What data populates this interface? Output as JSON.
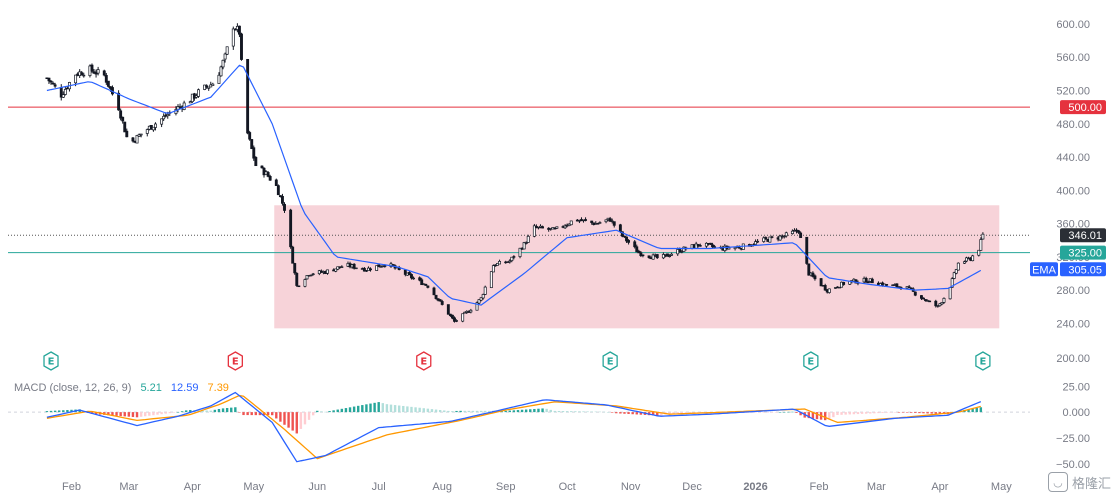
{
  "chart_data": {
    "type": "candlestick",
    "price_axis": {
      "ticks": [
        240,
        280,
        320,
        360,
        400,
        440,
        480,
        520,
        560,
        600
      ],
      "ylim": [
        226,
        612
      ]
    },
    "macd_axis": {
      "ticks": [
        25,
        0,
        -25,
        -50
      ],
      "tick_labels": [
        "25.00",
        "0.000",
        "−25.00",
        "−50.00"
      ],
      "ylim": [
        -56,
        33
      ]
    },
    "shared_tick": {
      "value": 200,
      "label": "200.00"
    },
    "x_axis": {
      "labels": [
        "Feb",
        "Mar",
        "Apr",
        "May",
        "Jun",
        "Jul",
        "Aug",
        "Sep",
        "Oct",
        "Nov",
        "Dec",
        "2026",
        "Feb",
        "Mar",
        "Apr",
        "May"
      ],
      "bold_label": "2026"
    },
    "anchors": [
      [
        "2025-01-20",
        535
      ],
      [
        "2025-01-27",
        515
      ],
      [
        "2025-02-03",
        540
      ],
      [
        "2025-02-10",
        545
      ],
      [
        "2025-02-17",
        538
      ],
      [
        "2025-02-24",
        500
      ],
      [
        "2025-03-01",
        455
      ],
      [
        "2025-03-08",
        470
      ],
      [
        "2025-03-15",
        482
      ],
      [
        "2025-03-22",
        495
      ],
      [
        "2025-03-29",
        505
      ],
      [
        "2025-04-05",
        520
      ],
      [
        "2025-04-12",
        530
      ],
      [
        "2025-04-17",
        560
      ],
      [
        "2025-04-21",
        598
      ],
      [
        "2025-04-24",
        590
      ],
      [
        "2025-04-27",
        478
      ],
      [
        "2025-05-02",
        430
      ],
      [
        "2025-05-07",
        420
      ],
      [
        "2025-05-12",
        405
      ],
      [
        "2025-05-16",
        378
      ],
      [
        "2025-05-19",
        330
      ],
      [
        "2025-05-22",
        285
      ],
      [
        "2025-05-28",
        300
      ],
      [
        "2025-06-05",
        302
      ],
      [
        "2025-06-15",
        310
      ],
      [
        "2025-06-25",
        305
      ],
      [
        "2025-07-05",
        312
      ],
      [
        "2025-07-15",
        298
      ],
      [
        "2025-07-25",
        285
      ],
      [
        "2025-08-01",
        262
      ],
      [
        "2025-08-07",
        242
      ],
      [
        "2025-08-14",
        255
      ],
      [
        "2025-08-20",
        270
      ],
      [
        "2025-08-26",
        310
      ],
      [
        "2025-09-03",
        315
      ],
      [
        "2025-09-10",
        335
      ],
      [
        "2025-09-15",
        355
      ],
      [
        "2025-09-25",
        352
      ],
      [
        "2025-10-05",
        365
      ],
      [
        "2025-10-15",
        360
      ],
      [
        "2025-10-22",
        365
      ],
      [
        "2025-10-28",
        345
      ],
      [
        "2025-11-05",
        325
      ],
      [
        "2025-11-15",
        318
      ],
      [
        "2025-11-25",
        328
      ],
      [
        "2025-12-05",
        335
      ],
      [
        "2025-12-15",
        330
      ],
      [
        "2025-12-25",
        332
      ],
      [
        "2026-01-05",
        340
      ],
      [
        "2026-01-15",
        345
      ],
      [
        "2026-01-22",
        352
      ],
      [
        "2026-01-27",
        300
      ],
      [
        "2026-02-05",
        280
      ],
      [
        "2026-02-15",
        290
      ],
      [
        "2026-02-25",
        292
      ],
      [
        "2026-03-05",
        286
      ],
      [
        "2026-03-15",
        284
      ],
      [
        "2026-03-25",
        268
      ],
      [
        "2026-03-31",
        260
      ],
      [
        "2026-04-05",
        278
      ],
      [
        "2026-04-10",
        312
      ],
      [
        "2026-04-16",
        318
      ],
      [
        "2026-04-20",
        330
      ],
      [
        "2026-04-22",
        346
      ]
    ],
    "ema_anchors": [
      [
        "2025-01-20",
        520
      ],
      [
        "2025-02-10",
        531
      ],
      [
        "2025-03-01",
        510
      ],
      [
        "2025-03-20",
        492
      ],
      [
        "2025-04-10",
        512
      ],
      [
        "2025-04-25",
        553
      ],
      [
        "2025-05-10",
        480
      ],
      [
        "2025-05-25",
        375
      ],
      [
        "2025-06-10",
        320
      ],
      [
        "2025-07-10",
        308
      ],
      [
        "2025-07-25",
        296
      ],
      [
        "2025-08-05",
        270
      ],
      [
        "2025-08-20",
        262
      ],
      [
        "2025-09-10",
        300
      ],
      [
        "2025-10-01",
        343
      ],
      [
        "2025-10-25",
        352
      ],
      [
        "2025-11-15",
        330
      ],
      [
        "2025-12-10",
        330
      ],
      [
        "2026-01-20",
        337
      ],
      [
        "2026-02-05",
        295
      ],
      [
        "2026-02-25",
        287
      ],
      [
        "2026-03-20",
        280
      ],
      [
        "2026-04-05",
        282
      ],
      [
        "2026-04-22",
        305
      ]
    ],
    "macd_anchors": [
      [
        "2025-01-20",
        -5
      ],
      [
        "2025-02-05",
        2
      ],
      [
        "2025-03-05",
        -13
      ],
      [
        "2025-03-25",
        -4
      ],
      [
        "2025-04-10",
        6
      ],
      [
        "2025-04-22",
        19
      ],
      [
        "2025-05-10",
        -10
      ],
      [
        "2025-05-22",
        -48
      ],
      [
        "2025-06-05",
        -42
      ],
      [
        "2025-07-01",
        -15
      ],
      [
        "2025-08-05",
        -9
      ],
      [
        "2025-08-25",
        0
      ],
      [
        "2025-09-20",
        12
      ],
      [
        "2025-10-20",
        7
      ],
      [
        "2025-11-15",
        -4
      ],
      [
        "2025-12-10",
        -2
      ],
      [
        "2026-01-20",
        3
      ],
      [
        "2026-02-05",
        -14
      ],
      [
        "2026-03-10",
        -6
      ],
      [
        "2026-04-05",
        -3
      ],
      [
        "2026-04-22",
        11
      ]
    ],
    "signal_anchors": [
      [
        "2025-01-20",
        -6
      ],
      [
        "2025-02-10",
        1
      ],
      [
        "2025-03-05",
        -8
      ],
      [
        "2025-03-30",
        -3
      ],
      [
        "2025-04-15",
        8
      ],
      [
        "2025-04-25",
        17
      ],
      [
        "2025-05-15",
        -15
      ],
      [
        "2025-06-01",
        -45
      ],
      [
        "2025-07-05",
        -22
      ],
      [
        "2025-08-10",
        -8
      ],
      [
        "2025-09-01",
        2
      ],
      [
        "2025-09-25",
        10
      ],
      [
        "2025-10-25",
        6
      ],
      [
        "2025-11-20",
        -2
      ],
      [
        "2026-01-25",
        3
      ],
      [
        "2026-02-10",
        -10
      ],
      [
        "2026-03-15",
        -5
      ],
      [
        "2026-04-10",
        0
      ],
      [
        "2026-04-22",
        6
      ]
    ],
    "levels": [
      {
        "name": "resistance",
        "value": 500,
        "label": "500.00",
        "color": "#e5323e",
        "style": "solid"
      },
      {
        "name": "support",
        "value": 325,
        "label": "325.00",
        "color": "#26a69a",
        "style": "solid"
      },
      {
        "name": "current",
        "value": 346.01,
        "label": "346.01",
        "color": "#555555",
        "style": "dotted"
      }
    ],
    "ema_tag": {
      "name": "EMA",
      "value": 305.05,
      "label": "305.05",
      "color": "#2962ff"
    },
    "range_box": {
      "from": "2025-05-11",
      "to": "2026-04-30",
      "low": 234,
      "high": 382,
      "color": "#f7d3d9"
    },
    "earnings": [
      {
        "date": "2025-01-22",
        "kind": "neutral"
      },
      {
        "date": "2025-04-22",
        "kind": "miss"
      },
      {
        "date": "2025-07-23",
        "kind": "miss"
      },
      {
        "date": "2025-10-22",
        "kind": "beat"
      },
      {
        "date": "2026-01-28",
        "kind": "beat"
      },
      {
        "date": "2026-04-22",
        "kind": "beat"
      }
    ],
    "earnings_icon": "E",
    "macd": {
      "label": "MACD (close, 12, 26, 9)",
      "values": [
        {
          "name": "histogram",
          "label": "5.21",
          "color": "#26a69a"
        },
        {
          "name": "macd",
          "label": "12.59",
          "color": "#2962ff"
        },
        {
          "name": "signal",
          "label": "7.39",
          "color": "#ff9800"
        }
      ]
    },
    "colors": {
      "candle": "#131722",
      "ema": "#2962ff",
      "macd_line": "#2962ff",
      "signal_line": "#ff9800",
      "hist_pos": "#26a69a",
      "hist_neg": "#ef5350",
      "earn_beat": "#26a69a",
      "earn_miss": "#e5323e",
      "earn_neutral": "#26a69a"
    }
  },
  "watermark": {
    "icon": "chat-bubble-icon",
    "text": "格隆汇"
  }
}
